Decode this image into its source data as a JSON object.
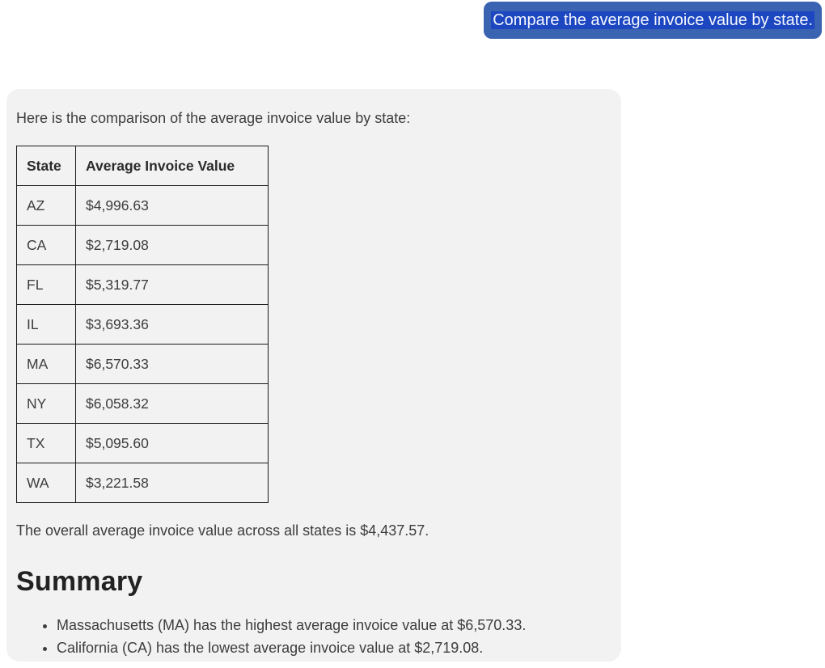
{
  "user_message": {
    "text": "Compare the average invoice value by state."
  },
  "assistant": {
    "intro": "Here is the comparison of the average invoice value by state:",
    "table": {
      "headers": [
        "State",
        "Average Invoice Value"
      ],
      "rows": [
        [
          "AZ",
          "$4,996.63"
        ],
        [
          "CA",
          "$2,719.08"
        ],
        [
          "FL",
          "$5,319.77"
        ],
        [
          "IL",
          "$3,693.36"
        ],
        [
          "MA",
          "$6,570.33"
        ],
        [
          "NY",
          "$6,058.32"
        ],
        [
          "TX",
          "$5,095.60"
        ],
        [
          "WA",
          "$3,221.58"
        ]
      ]
    },
    "overall": "The overall average invoice value across all states is $4,437.57.",
    "summary_heading": "Summary",
    "bullets": [
      "Massachusetts (MA) has the highest average invoice value at $6,570.33.",
      "California (CA) has the lowest average invoice value at $2,719.08."
    ]
  },
  "colors": {
    "bubble_outer": "#3a63b2",
    "bubble_highlight": "#1d47c0",
    "bubble_text": "#f4f7ff",
    "panel_background": "#f2f2f2",
    "body_text": "#3d3d3d",
    "table_border": "#1c1c1c",
    "heading_text": "#222222",
    "page_background": "#ffffff"
  }
}
